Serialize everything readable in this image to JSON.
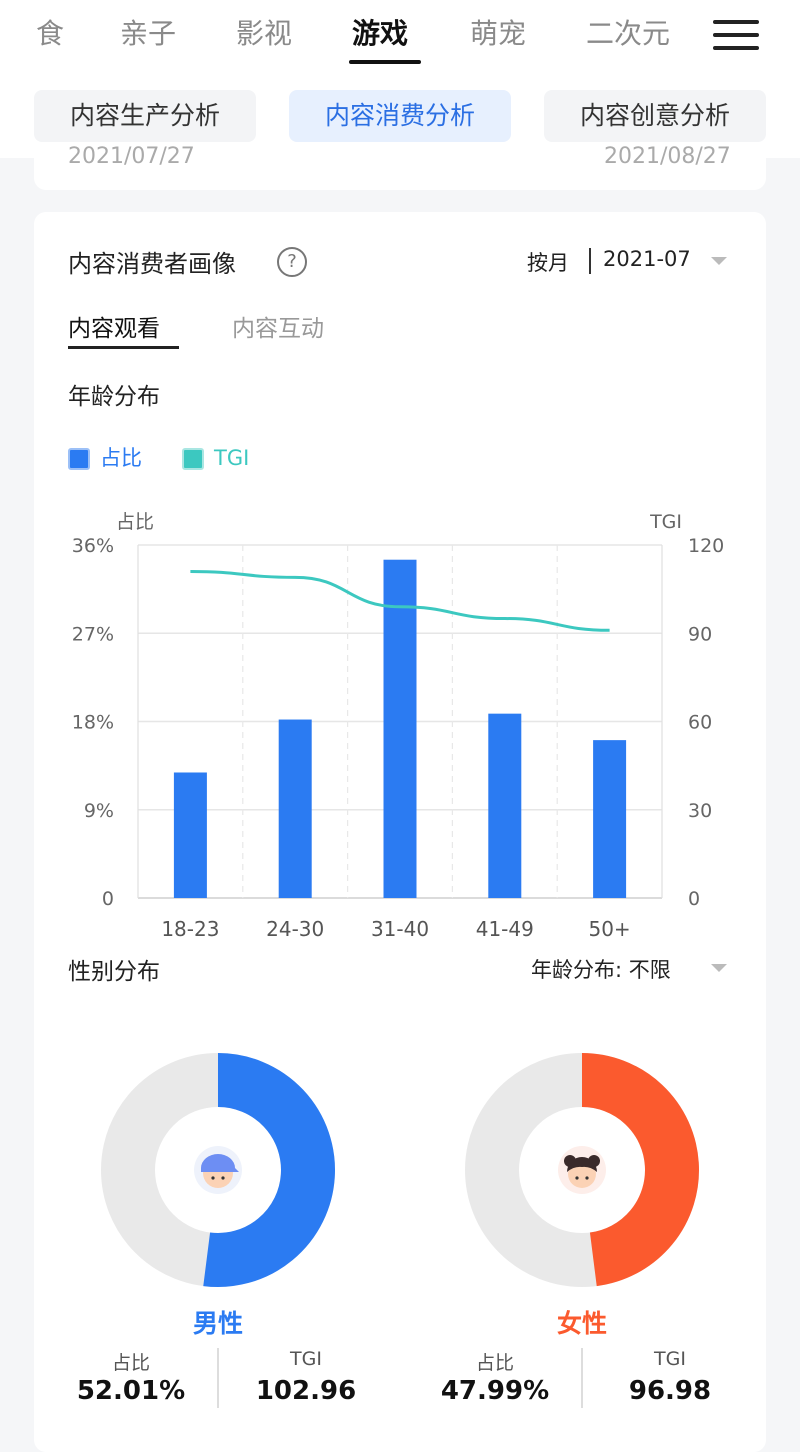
{
  "categories": [
    {
      "label": "食",
      "active": false
    },
    {
      "label": "亲子",
      "active": false
    },
    {
      "label": "影视",
      "active": false
    },
    {
      "label": "游戏",
      "active": true
    },
    {
      "label": "萌宠",
      "active": false
    },
    {
      "label": "二次元",
      "active": false
    }
  ],
  "analysis_tabs": [
    {
      "label": "内容生产分析",
      "active": false
    },
    {
      "label": "内容消费分析",
      "active": true
    },
    {
      "label": "内容创意分析",
      "active": false
    }
  ],
  "top_card": {
    "start_date": "2021/07/27",
    "end_date": "2021/08/27"
  },
  "portrait": {
    "title": "内容消费者画像",
    "period_label": "按月",
    "period_value": "2021-07",
    "tabs": [
      {
        "label": "内容观看",
        "active": true
      },
      {
        "label": "内容互动",
        "active": false
      }
    ]
  },
  "age": {
    "section_title": "年龄分布",
    "legend": [
      {
        "label": "占比",
        "color": "#2b7bf2"
      },
      {
        "label": "TGI",
        "color": "#3cc8c0"
      }
    ]
  },
  "chart_data": {
    "type": "bar",
    "categories": [
      "18-23",
      "24-30",
      "31-40",
      "41-49",
      "50+"
    ],
    "series": [
      {
        "name": "占比",
        "type": "bar",
        "axis": "left",
        "values": [
          12.8,
          18.2,
          34.5,
          18.8,
          16.1
        ]
      },
      {
        "name": "TGI",
        "type": "line",
        "axis": "right",
        "values": [
          111,
          109,
          99,
          95,
          91
        ]
      }
    ],
    "ylabel": "占比",
    "y2label": "TGI",
    "ylim": [
      0,
      36
    ],
    "y2lim": [
      0,
      120
    ],
    "yticks": [
      "0",
      "9%",
      "18%",
      "27%",
      "36%"
    ],
    "y2ticks": [
      "0",
      "30",
      "60",
      "90",
      "120"
    ],
    "grid": true
  },
  "gender": {
    "section_title": "性别分布",
    "filter_label": "年龄分布: 不限",
    "stat_label_share": "占比",
    "stat_label_tgi": "TGI",
    "male": {
      "label": "男性",
      "share": "52.01%",
      "share_value": 52.01,
      "tgi": "102.96",
      "color": "#2b7bf2",
      "icon": "male-avatar-icon"
    },
    "female": {
      "label": "女性",
      "share": "47.99%",
      "share_value": 47.99,
      "tgi": "96.98",
      "color": "#fb5a2e",
      "icon": "female-avatar-icon"
    }
  }
}
